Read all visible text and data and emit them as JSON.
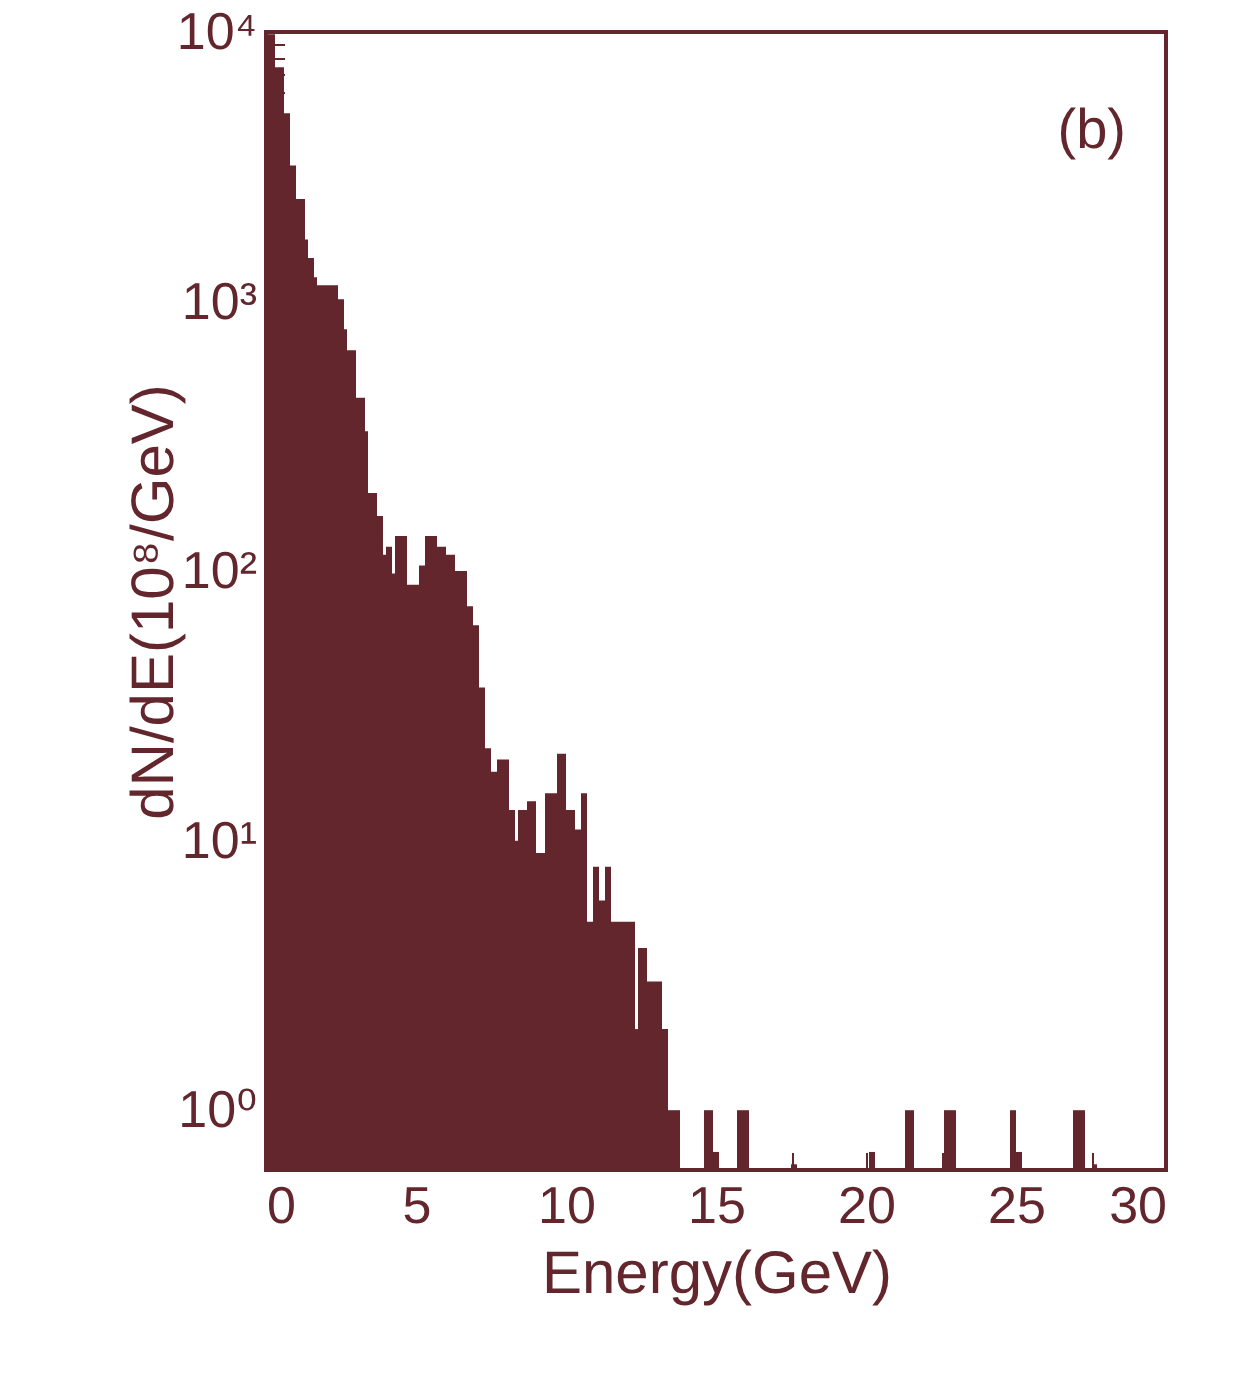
{
  "chart_data": {
    "type": "histogram",
    "xlabel": "Energy(GeV)",
    "ylabel": "dN/dE(10⁸/GeV)",
    "annotations": [
      "(b)"
    ],
    "color": "#63262d",
    "log": "y",
    "grid": false,
    "bins": [
      0,
      0.3,
      0.6,
      0.8,
      1.0,
      1.3,
      1.4,
      1.6,
      1.7,
      2.4,
      2.6,
      2.7,
      3.0,
      3.3,
      3.4,
      3.7,
      3.9,
      4.0,
      4.2,
      4.3,
      4.7,
      4.8,
      5.1,
      5.3,
      5.7,
      6.0,
      6.3,
      6.7,
      6.9,
      7.1,
      7.3,
      7.5,
      7.7,
      8.1,
      8.3,
      8.4,
      8.7,
      9.0,
      9.3,
      9.7,
      10.0,
      10.3,
      10.5,
      10.7,
      10.9,
      11.1,
      11.3,
      11.5,
      12.3,
      12.4,
      12.7,
      13.2,
      13.4,
      13.8,
      14.6,
      14.9,
      15.1,
      15.7,
      16.1,
      17.5,
      17.7,
      20.1,
      20.3,
      21.3,
      21.6,
      22.6,
      23.0,
      24.8,
      25.0,
      25.2,
      26.9,
      27.3,
      27.6,
      27.7
    ],
    "values": [
      9800,
      7400,
      5000,
      3200,
      2400,
      1700,
      1450,
      1230,
      1150,
      1020,
      790,
      660,
      440,
      330,
      195,
      160,
      115,
      123,
      98,
      135,
      89,
      89,
      105,
      135,
      123,
      115,
      100,
      74,
      63,
      37,
      22,
      18,
      20,
      13,
      10,
      13,
      14,
      9,
      15,
      21,
      13,
      11,
      15,
      5,
      8,
      6,
      8,
      5,
      2,
      4,
      3,
      2,
      1,
      null,
      1,
      0.7,
      null,
      1,
      null,
      0.63,
      null,
      0.7,
      null,
      1,
      null,
      1,
      null,
      1,
      0.7,
      null,
      1,
      null,
      0.63
    ],
    "xlim": [
      0,
      30
    ],
    "xticks": [
      0,
      {
        "value": 2.5,
        "label": null
      },
      5,
      {
        "value": 7.5,
        "label": null
      },
      10,
      {
        "value": 12.5,
        "label": null
      },
      15,
      {
        "value": 17.5,
        "label": null
      },
      20,
      {
        "value": 22.5,
        "label": null
      },
      25,
      {
        "value": 27.5,
        "label": null
      },
      30
    ],
    "ylim": [
      0.6,
      10000
    ],
    "yticks": [
      {
        "value": 0.7,
        "label": null
      },
      {
        "value": 0.8,
        "label": null
      },
      {
        "value": 0.9,
        "label": null
      },
      {
        "value": 1,
        "label": "10⁰"
      },
      {
        "value": 2,
        "label": null
      },
      {
        "value": 3,
        "label": null
      },
      {
        "value": 4,
        "label": null
      },
      {
        "value": 5,
        "label": null
      },
      {
        "value": 6,
        "label": null
      },
      {
        "value": 7,
        "label": null
      },
      {
        "value": 8,
        "label": null
      },
      {
        "value": 9,
        "label": null
      },
      {
        "value": 10,
        "label": "10¹"
      },
      {
        "value": 20,
        "label": null
      },
      {
        "value": 30,
        "label": null
      },
      {
        "value": 40,
        "label": null
      },
      {
        "value": 50,
        "label": null
      },
      {
        "value": 60,
        "label": null
      },
      {
        "value": 70,
        "label": null
      },
      {
        "value": 80,
        "label": null
      },
      {
        "value": 90,
        "label": null
      },
      {
        "value": 100,
        "label": "10²"
      },
      {
        "value": 200,
        "label": null
      },
      {
        "value": 300,
        "label": null
      },
      {
        "value": 400,
        "label": null
      },
      {
        "value": 500,
        "label": null
      },
      {
        "value": 600,
        "label": null
      },
      {
        "value": 700,
        "label": null
      },
      {
        "value": 800,
        "label": null
      },
      {
        "value": 900,
        "label": null
      },
      {
        "value": 1000,
        "label": "10³"
      },
      {
        "value": 2000,
        "label": null
      },
      {
        "value": 3000,
        "label": null
      },
      {
        "value": 4000,
        "label": null
      },
      {
        "value": 5000,
        "label": null
      },
      {
        "value": 6000,
        "label": null
      },
      {
        "value": 7000,
        "label": null
      },
      {
        "value": 8000,
        "label": null
      },
      {
        "value": 9000,
        "label": null
      },
      {
        "value": 10000,
        "label": "10⁴"
      }
    ]
  }
}
